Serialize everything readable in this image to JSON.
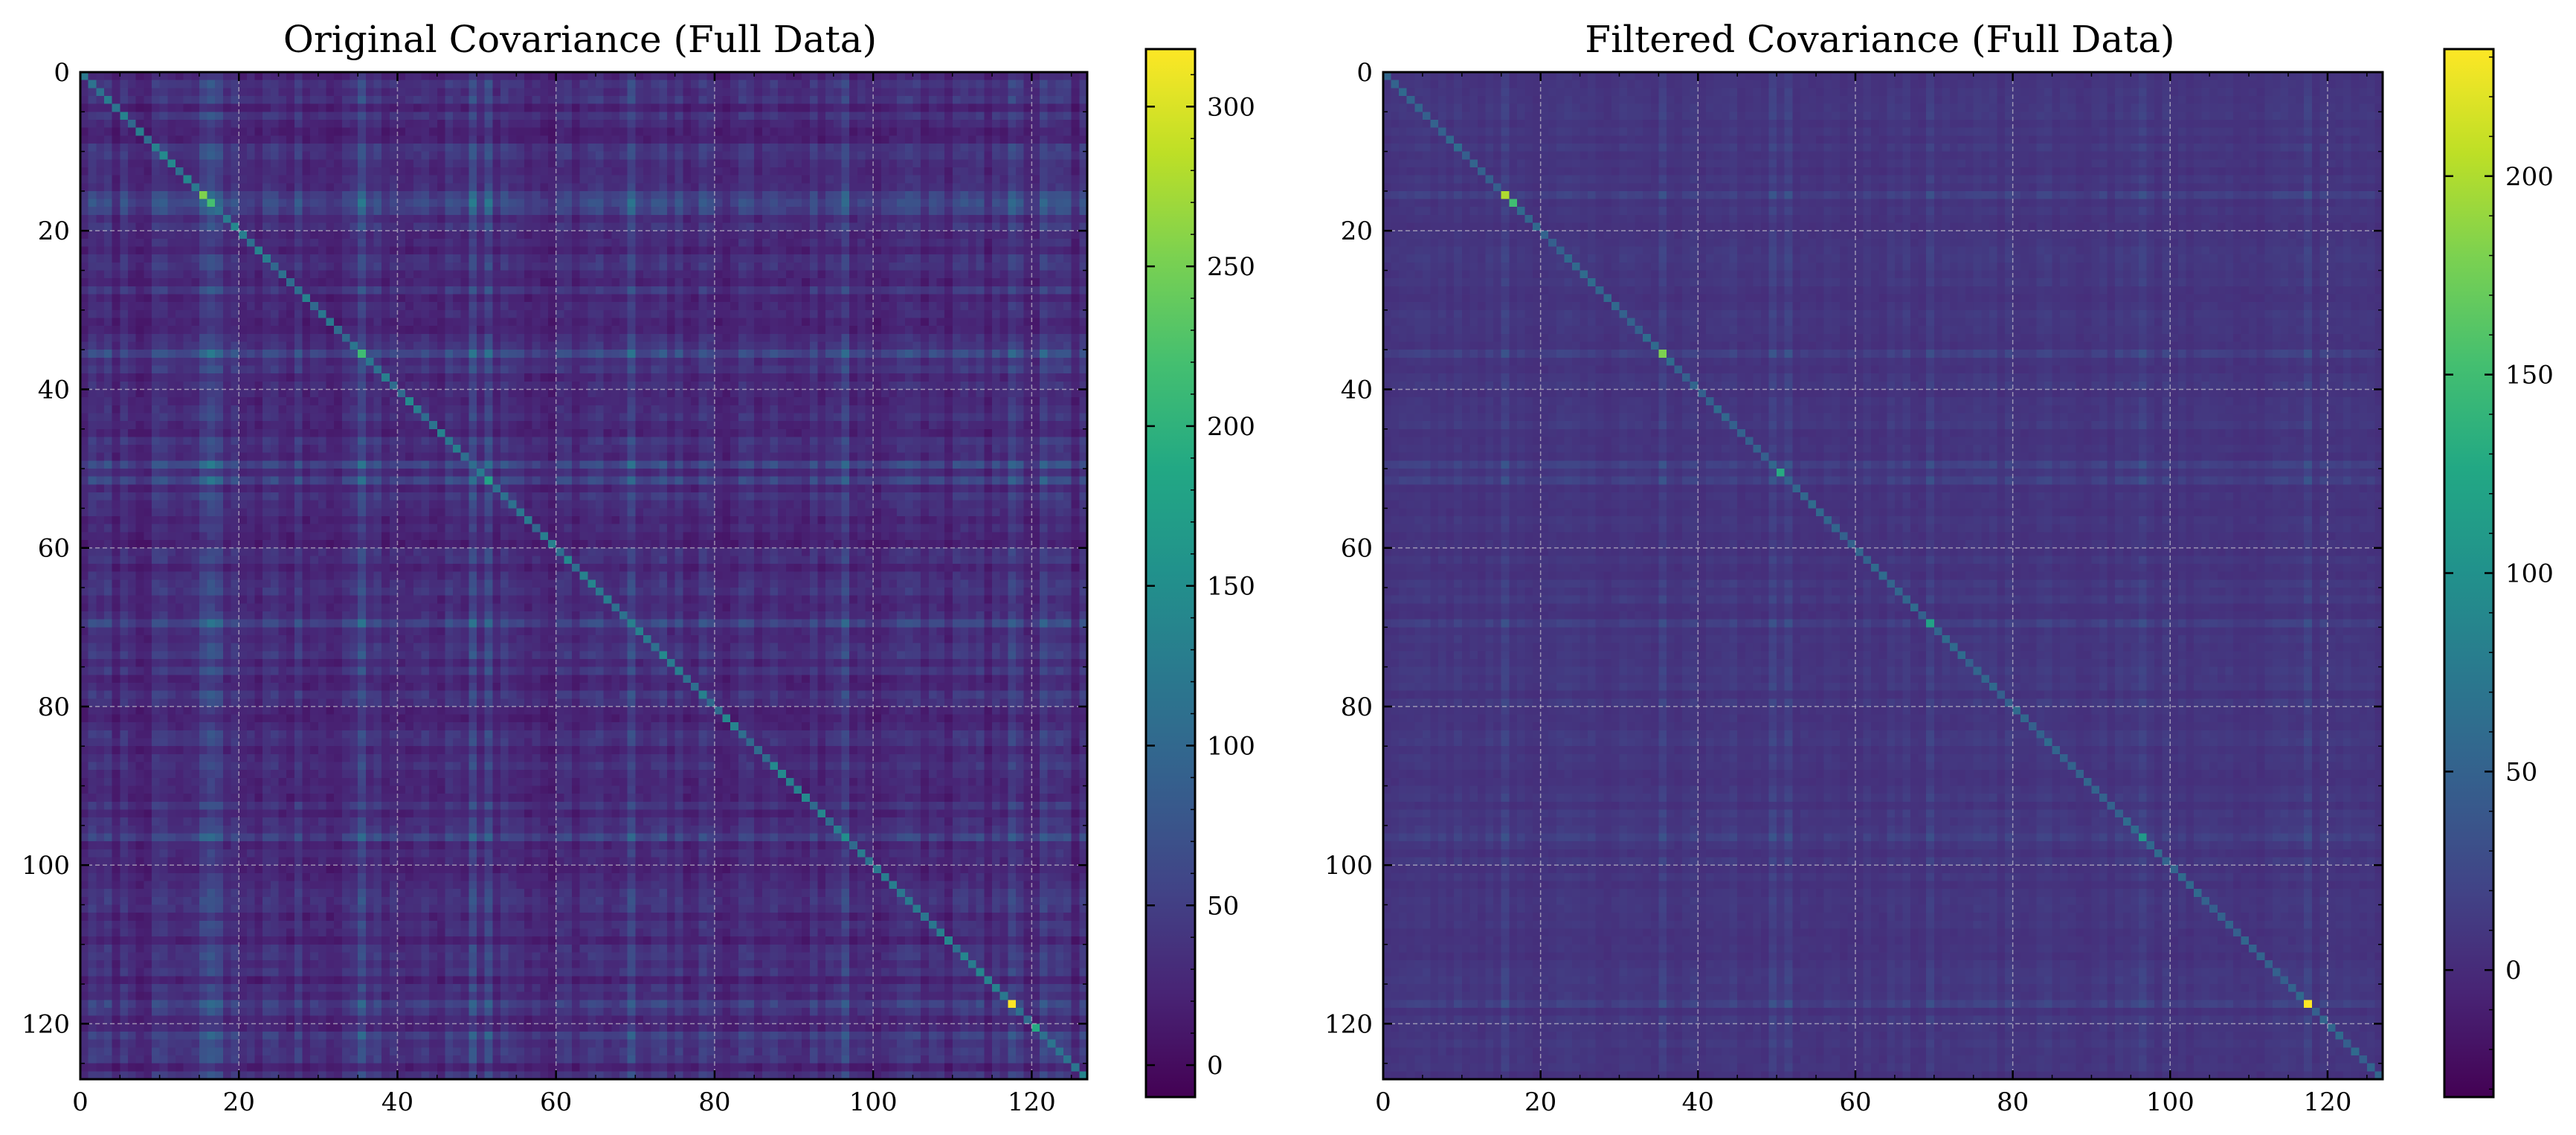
{
  "chart_data": [
    {
      "type": "heatmap",
      "title": "Original Covariance (Full Data)",
      "matrix_size": 127,
      "xlim": [
        0,
        127
      ],
      "ylim": [
        127,
        0
      ],
      "x_ticks": [
        0,
        20,
        40,
        60,
        80,
        100,
        120
      ],
      "y_ticks": [
        0,
        20,
        40,
        60,
        80,
        100,
        120
      ],
      "grid": true,
      "colormap": "viridis",
      "colorbar": {
        "min": -10,
        "max": 318,
        "ticks": [
          0,
          50,
          100,
          150,
          200,
          250,
          300
        ]
      },
      "diagonal_peaks": [
        {
          "index": 15,
          "value": 255
        },
        {
          "index": 16,
          "value": 220
        },
        {
          "index": 35,
          "value": 215
        },
        {
          "index": 51,
          "value": 180
        },
        {
          "index": 96,
          "value": 150
        },
        {
          "index": 117,
          "value": 318
        },
        {
          "index": 120,
          "value": 190
        }
      ],
      "bright_columns": [
        15,
        16,
        17,
        35,
        49,
        51,
        69,
        96,
        117,
        121
      ],
      "background_level": 40
    },
    {
      "type": "heatmap",
      "title": "Filtered Covariance (Full Data)",
      "matrix_size": 127,
      "xlim": [
        0,
        127
      ],
      "ylim": [
        127,
        0
      ],
      "x_ticks": [
        0,
        20,
        40,
        60,
        80,
        100,
        120
      ],
      "y_ticks": [
        0,
        20,
        40,
        60,
        80,
        100,
        120
      ],
      "grid": true,
      "colormap": "viridis",
      "colorbar": {
        "min": -32,
        "max": 232,
        "ticks": [
          0,
          50,
          100,
          150,
          200
        ]
      },
      "diagonal_peaks": [
        {
          "index": 15,
          "value": 200
        },
        {
          "index": 16,
          "value": 150
        },
        {
          "index": 35,
          "value": 180
        },
        {
          "index": 50,
          "value": 130
        },
        {
          "index": 69,
          "value": 120
        },
        {
          "index": 96,
          "value": 110
        },
        {
          "index": 117,
          "value": 232
        }
      ],
      "bright_columns": [
        15,
        35,
        49,
        51,
        69,
        96,
        117
      ],
      "background_level": 12
    }
  ]
}
